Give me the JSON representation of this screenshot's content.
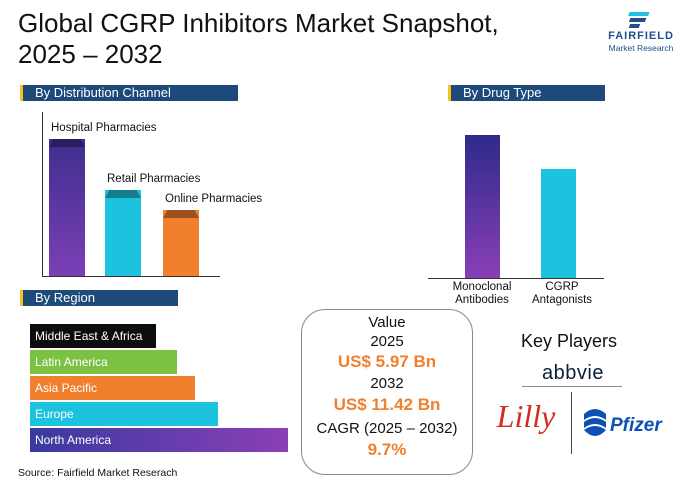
{
  "header": {
    "title_line1": "Global CGRP Inhibitors Market Snapshot,",
    "title_line2": "2025 – 2032",
    "logo_name": "FAIRFIELD",
    "logo_sub": "Market Research"
  },
  "sections": {
    "distribution": "By Distribution Channel",
    "drug_type": "By Drug Type",
    "region": "By Region"
  },
  "chart_data": [
    {
      "type": "bar",
      "title": "By Distribution Channel",
      "categories": [
        "Hospital Pharmacies",
        "Retail Pharmacies",
        "Online Pharmacies"
      ],
      "values": [
        100,
        63,
        48
      ],
      "unit": "relative share (unlabeled)",
      "colors": [
        "#4b3fa0",
        "#1cc2de",
        "#f07f2e"
      ]
    },
    {
      "type": "bar",
      "title": "By Drug Type",
      "categories": [
        "Monoclonal Antibodies",
        "CGRP Antagonists"
      ],
      "values": [
        100,
        76
      ],
      "unit": "relative share (unlabeled)",
      "colors": [
        "#4b3fa0",
        "#1cc2de"
      ]
    },
    {
      "type": "bar",
      "orientation": "horizontal",
      "title": "By Region",
      "categories": [
        "Middle East & Africa",
        "Latin America",
        "Asia Pacific",
        "Europe",
        "North America"
      ],
      "values": [
        49,
        57,
        64,
        73,
        100
      ],
      "unit": "relative share (unlabeled)",
      "colors": [
        "#0d0d0d",
        "#7cc242",
        "#f07f2e",
        "#1cc2de",
        "#5a3aa6"
      ]
    }
  ],
  "value_box": {
    "label": "Value",
    "year1": "2025",
    "value1": "US$ 5.97 Bn",
    "year2": "2032",
    "value2": "US$ 11.42 Bn",
    "cagr_label": "CAGR (2025 – 2032)",
    "cagr_value": "9.7%"
  },
  "key_players": {
    "title": "Key Players",
    "players": [
      "abbvie",
      "Lilly",
      "Pfizer"
    ]
  },
  "source": "Source: Fairfield Market Reserach",
  "colors": {
    "navy": "#1d4a7a",
    "purple": "#4b3fa0",
    "cyan": "#1cc2de",
    "orange": "#f07f2e",
    "green": "#7cc242",
    "black": "#0d0d0d"
  }
}
